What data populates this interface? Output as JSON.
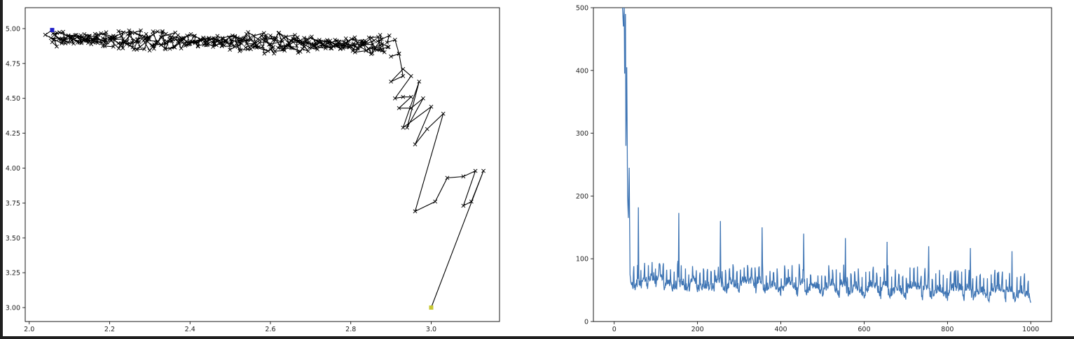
{
  "chart_data": [
    {
      "type": "line",
      "title": "",
      "xlabel": "",
      "ylabel": "",
      "xlim": [
        1.99,
        3.17
      ],
      "ylim": [
        2.9,
        5.15
      ],
      "x_ticks": [
        "2.0",
        "2.2",
        "2.4",
        "2.6",
        "2.8",
        "3.0"
      ],
      "y_ticks": [
        "3.00",
        "3.25",
        "3.50",
        "3.75",
        "4.00",
        "4.25",
        "4.50",
        "4.75",
        "5.00"
      ],
      "grid": false,
      "series": [
        {
          "marker": "x",
          "color": "#000000",
          "x": [
            3.0,
            3.13,
            3.1,
            3.08,
            3.11,
            3.08,
            3.04,
            3.01,
            2.96,
            3.03,
            2.99,
            2.96,
            3.0,
            2.93,
            2.97,
            2.94,
            2.98,
            2.95,
            2.92,
            2.95,
            2.93,
            2.91,
            2.95,
            2.93,
            2.9,
            2.93,
            2.92,
            2.9,
            2.92,
            2.91,
            2.89
          ],
          "y": [
            3.0,
            3.98,
            3.76,
            3.73,
            3.98,
            3.94,
            3.93,
            3.76,
            3.69,
            4.39,
            4.28,
            4.17,
            4.44,
            4.29,
            4.62,
            4.29,
            4.5,
            4.43,
            4.43,
            4.51,
            4.51,
            4.5,
            4.66,
            4.71,
            4.62,
            4.66,
            4.82,
            4.8,
            4.82,
            4.92,
            4.9
          ]
        }
      ],
      "start_point": {
        "x": 3.0,
        "y": 3.0,
        "color": "#c8c832"
      },
      "end_point": {
        "x": 2.057,
        "y": 4.99,
        "color": "#2020c8"
      }
    },
    {
      "type": "line",
      "title": "",
      "xlabel": "",
      "ylabel": "",
      "xlim": [
        -50,
        1050
      ],
      "ylim": [
        0,
        500
      ],
      "x_ticks": [
        "0",
        "200",
        "400",
        "600",
        "800",
        "1000"
      ],
      "y_ticks": [
        "0",
        "100",
        "200",
        "300",
        "400",
        "500"
      ],
      "grid": false,
      "series": [
        {
          "color": "#3f75b4",
          "x": [
            20,
            22,
            24,
            25,
            27,
            28,
            30,
            32,
            34,
            36,
            38,
            40,
            45,
            50,
            55,
            58,
            60,
            65,
            70,
            80,
            90,
            100,
            110,
            120,
            130,
            140,
            150,
            155,
            158,
            162,
            170,
            180,
            190,
            200,
            220,
            240,
            255,
            258,
            262,
            270,
            280,
            300,
            320,
            340,
            355,
            358,
            362,
            380,
            400,
            420,
            440,
            455,
            458,
            462,
            480,
            500,
            520,
            540,
            555,
            558,
            562,
            580,
            600,
            620,
            640,
            655,
            658,
            662,
            680,
            700,
            720,
            740,
            755,
            758,
            762,
            780,
            800,
            820,
            840,
            855,
            858,
            862,
            880,
            900,
            920,
            940,
            955,
            958,
            962,
            980,
            1000
          ],
          "y": [
            500,
            470,
            500,
            395,
            490,
            280,
            405,
            200,
            165,
            245,
            75,
            62,
            52,
            50,
            55,
            182,
            58,
            53,
            70,
            52,
            75,
            55,
            90,
            50,
            60,
            48,
            52,
            173,
            55,
            60,
            50,
            48,
            70,
            47,
            52,
            48,
            160,
            55,
            50,
            45,
            60,
            46,
            90,
            45,
            150,
            50,
            45,
            55,
            42,
            65,
            40,
            140,
            48,
            42,
            55,
            40,
            58,
            38,
            133,
            45,
            40,
            52,
            37,
            60,
            36,
            127,
            42,
            38,
            50,
            35,
            85,
            34,
            120,
            40,
            36,
            48,
            33,
            82,
            33,
            117,
            38,
            34,
            46,
            32,
            78,
            31,
            112,
            36,
            32,
            45,
            30
          ]
        }
      ]
    }
  ]
}
